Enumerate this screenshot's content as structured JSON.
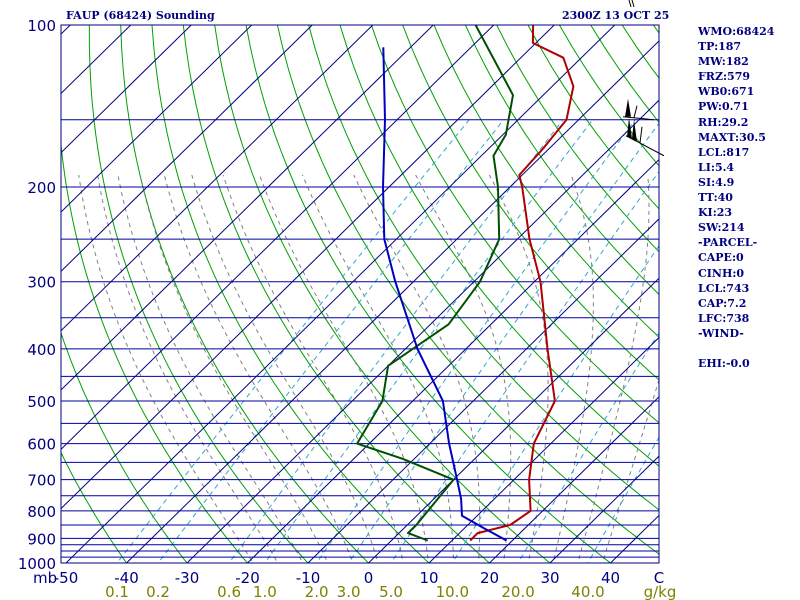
{
  "header": {
    "title_left": "FAUP (68424) Sounding",
    "title_right": "2300Z 13 OCT 25"
  },
  "colors": {
    "isobar": "#0000a0",
    "isotherm": "#000080",
    "dry_adiabat": "#00a000",
    "moist_adiabat": "#808080",
    "mixing_ratio": "#33a6cc",
    "temperature": "#b00000",
    "dewpoint": "#005000",
    "parcel": "#0000c0",
    "axis_text": "#000080",
    "mixing_text": "#808000"
  },
  "chart_data": {
    "type": "line",
    "subtype": "skew-T log-P sounding",
    "title": "FAUP (68424) Sounding",
    "valid_time": "2300Z 13 OCT 25",
    "y_axis": {
      "label": "mb",
      "scale": "log",
      "range": [
        1000,
        100
      ],
      "ticks": [
        100,
        200,
        300,
        400,
        500,
        600,
        700,
        800,
        900,
        1000
      ]
    },
    "x_axis": {
      "label": "C",
      "skewed": true,
      "ticks": [
        -50,
        -40,
        -30,
        -20,
        -10,
        0,
        10,
        20,
        30,
        40
      ]
    },
    "isobars": [
      100,
      150,
      200,
      250,
      300,
      350,
      400,
      450,
      500,
      550,
      600,
      650,
      700,
      750,
      800,
      850,
      900,
      925,
      950,
      975,
      1000
    ],
    "mixing_ratio_labels": [
      "0.1",
      "0.2",
      "0.6",
      "1.0",
      "2.0",
      "3.0",
      "5.0",
      "10.0",
      "20.0",
      "40.0"
    ],
    "mixing_ratio_unit": "g/kg",
    "series": [
      {
        "name": "Temperature",
        "unit": "C",
        "points": [
          {
            "p": 908,
            "t": 13.0
          },
          {
            "p": 880,
            "t": 13.0
          },
          {
            "p": 850,
            "t": 17.0
          },
          {
            "p": 800,
            "t": 18.0
          },
          {
            "p": 700,
            "t": 12.5
          },
          {
            "p": 600,
            "t": 7.2
          },
          {
            "p": 500,
            "t": 3.5
          },
          {
            "p": 400,
            "t": -6.5
          },
          {
            "p": 300,
            "t": -19.0
          },
          {
            "p": 250,
            "t": -28.0
          },
          {
            "p": 200,
            "t": -38.0
          },
          {
            "p": 190,
            "t": -40.5
          },
          {
            "p": 170,
            "t": -41.0
          },
          {
            "p": 150,
            "t": -42.0
          },
          {
            "p": 130,
            "t": -46.5
          },
          {
            "p": 115,
            "t": -53.0
          },
          {
            "p": 108,
            "t": -60.5
          },
          {
            "p": 100,
            "t": -63.5
          }
        ]
      },
      {
        "name": "Dewpoint",
        "unit": "C",
        "points": [
          {
            "p": 908,
            "t": 6.0
          },
          {
            "p": 880,
            "t": 1.5
          },
          {
            "p": 850,
            "t": 1.5
          },
          {
            "p": 700,
            "t": 0.0
          },
          {
            "p": 640,
            "t": -12.0
          },
          {
            "p": 600,
            "t": -22.0
          },
          {
            "p": 500,
            "t": -25.0
          },
          {
            "p": 430,
            "t": -30.0
          },
          {
            "p": 360,
            "t": -27.0
          },
          {
            "p": 300,
            "t": -29.0
          },
          {
            "p": 250,
            "t": -33.0
          },
          {
            "p": 200,
            "t": -42.0
          },
          {
            "p": 175,
            "t": -48.0
          },
          {
            "p": 160,
            "t": -49.5
          },
          {
            "p": 135,
            "t": -55.0
          },
          {
            "p": 100,
            "t": -73.0
          }
        ]
      },
      {
        "name": "Parcel",
        "unit": "C",
        "points": [
          {
            "p": 908,
            "t": 19.0
          },
          {
            "p": 860,
            "t": 13.0
          },
          {
            "p": 817,
            "t": 7.5
          },
          {
            "p": 760,
            "t": 4.5
          },
          {
            "p": 700,
            "t": 0.6
          },
          {
            "p": 600,
            "t": -6.8
          },
          {
            "p": 500,
            "t": -15.0
          },
          {
            "p": 400,
            "t": -28.0
          },
          {
            "p": 300,
            "t": -43.0
          },
          {
            "p": 250,
            "t": -52.0
          },
          {
            "p": 200,
            "t": -61.0
          },
          {
            "p": 150,
            "t": -72.0
          },
          {
            "p": 110,
            "t": -84.5
          }
        ]
      }
    ],
    "wind_barbs": [
      {
        "p": 100,
        "label": "upper barb"
      },
      {
        "p": 150,
        "label": "barb"
      },
      {
        "p": 175,
        "label": "barb"
      }
    ]
  },
  "indices": [
    "WMO:68424",
    "TP:187",
    "MW:182",
    "FRZ:579",
    "WB0:671",
    "PW:0.71",
    "RH:29.2",
    "MAXT:30.5",
    "LCL:817",
    "LI:5.4",
    "SI:4.9",
    "TT:40",
    "KI:23",
    "SW:214",
    "-PARCEL-",
    "CAPE:0",
    "CINH:0",
    "LCL:743",
    "CAP:7.2",
    "LFC:738",
    "-WIND-",
    "",
    "EHI:-0.0"
  ]
}
